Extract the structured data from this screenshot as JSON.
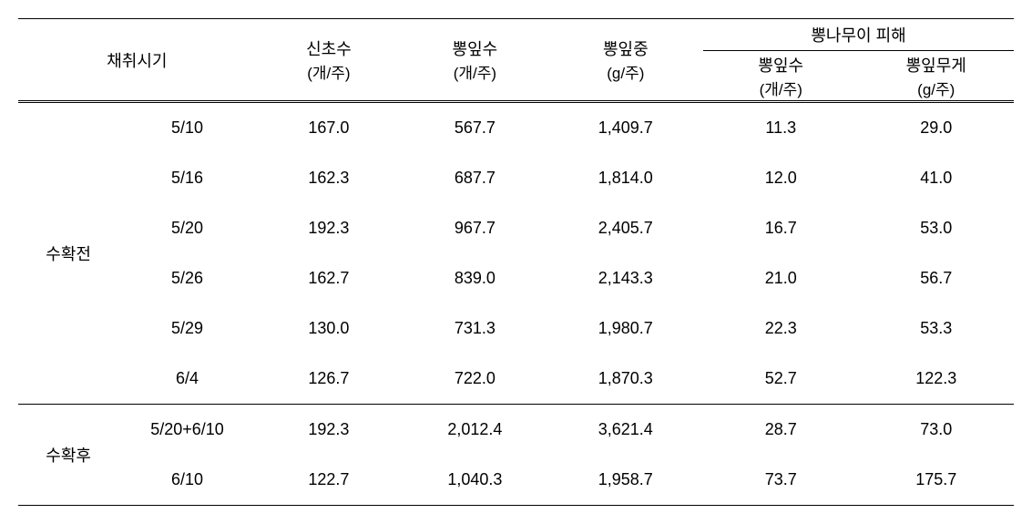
{
  "header": {
    "group_label": "채취시기",
    "col1": {
      "title": "신초수",
      "unit": "(개/주)"
    },
    "col2": {
      "title": "뽕잎수",
      "unit": "(개/주)"
    },
    "col3": {
      "title": "뽕잎중",
      "unit": "(g/주)"
    },
    "damage_group": "뽕나무이 피해",
    "col4": {
      "title": "뽕잎수",
      "unit": "(개/주)"
    },
    "col5": {
      "title": "뽕잎무게",
      "unit": "(g/주)"
    }
  },
  "sections": [
    {
      "label": "수확전",
      "rows": [
        {
          "date": "5/10",
          "c1": "167.0",
          "c2": "567.7",
          "c3": "1,409.7",
          "c4": "11.3",
          "c5": "29.0"
        },
        {
          "date": "5/16",
          "c1": "162.3",
          "c2": "687.7",
          "c3": "1,814.0",
          "c4": "12.0",
          "c5": "41.0"
        },
        {
          "date": "5/20",
          "c1": "192.3",
          "c2": "967.7",
          "c3": "2,405.7",
          "c4": "16.7",
          "c5": "53.0"
        },
        {
          "date": "5/26",
          "c1": "162.7",
          "c2": "839.0",
          "c3": "2,143.3",
          "c4": "21.0",
          "c5": "56.7"
        },
        {
          "date": "5/29",
          "c1": "130.0",
          "c2": "731.3",
          "c3": "1,980.7",
          "c4": "22.3",
          "c5": "53.3"
        },
        {
          "date": "6/4",
          "c1": "126.7",
          "c2": "722.0",
          "c3": "1,870.3",
          "c4": "52.7",
          "c5": "122.3"
        }
      ]
    },
    {
      "label": "수확후",
      "rows": [
        {
          "date": "5/20+6/10",
          "c1": "192.3",
          "c2": "2,012.4",
          "c3": "3,621.4",
          "c4": "28.7",
          "c5": "73.0"
        },
        {
          "date": "6/10",
          "c1": "122.7",
          "c2": "1,040.3",
          "c3": "1,958.7",
          "c4": "73.7",
          "c5": "175.7"
        }
      ]
    }
  ]
}
